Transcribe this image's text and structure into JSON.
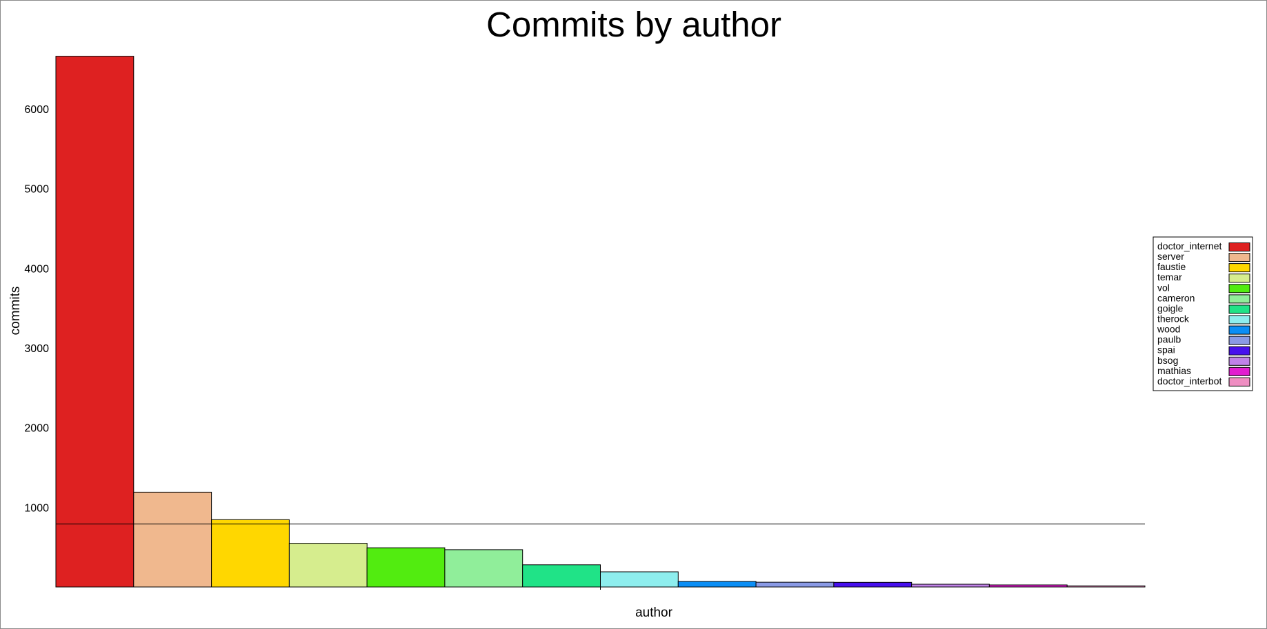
{
  "chart_data": {
    "type": "bar",
    "title": "Commits by author",
    "xlabel": "author",
    "ylabel": "commits",
    "categories": [
      "doctor_internet",
      "server",
      "faustie",
      "temar",
      "vol",
      "cameron",
      "goigle",
      "therock",
      "wood",
      "paulb",
      "spai",
      "bsog",
      "mathias",
      "doctor_interbot"
    ],
    "values": [
      6660,
      1190,
      845,
      548,
      492,
      468,
      278,
      190,
      70,
      60,
      58,
      35,
      26,
      14
    ],
    "colors": [
      "#de2121",
      "#f0b88e",
      "#ffd700",
      "#d6ed8e",
      "#52ec10",
      "#90ee9a",
      "#20e387",
      "#8eeeee",
      "#0b8ef5",
      "#8a9ae5",
      "#4710ed",
      "#c082e8",
      "#e21dd0",
      "#ef8ec2"
    ],
    "yticks": [
      1000,
      2000,
      3000,
      4000,
      5000,
      6000
    ],
    "ylim": [
      0,
      6700
    ],
    "reference_line": 790,
    "grid": false,
    "legend": "right"
  }
}
